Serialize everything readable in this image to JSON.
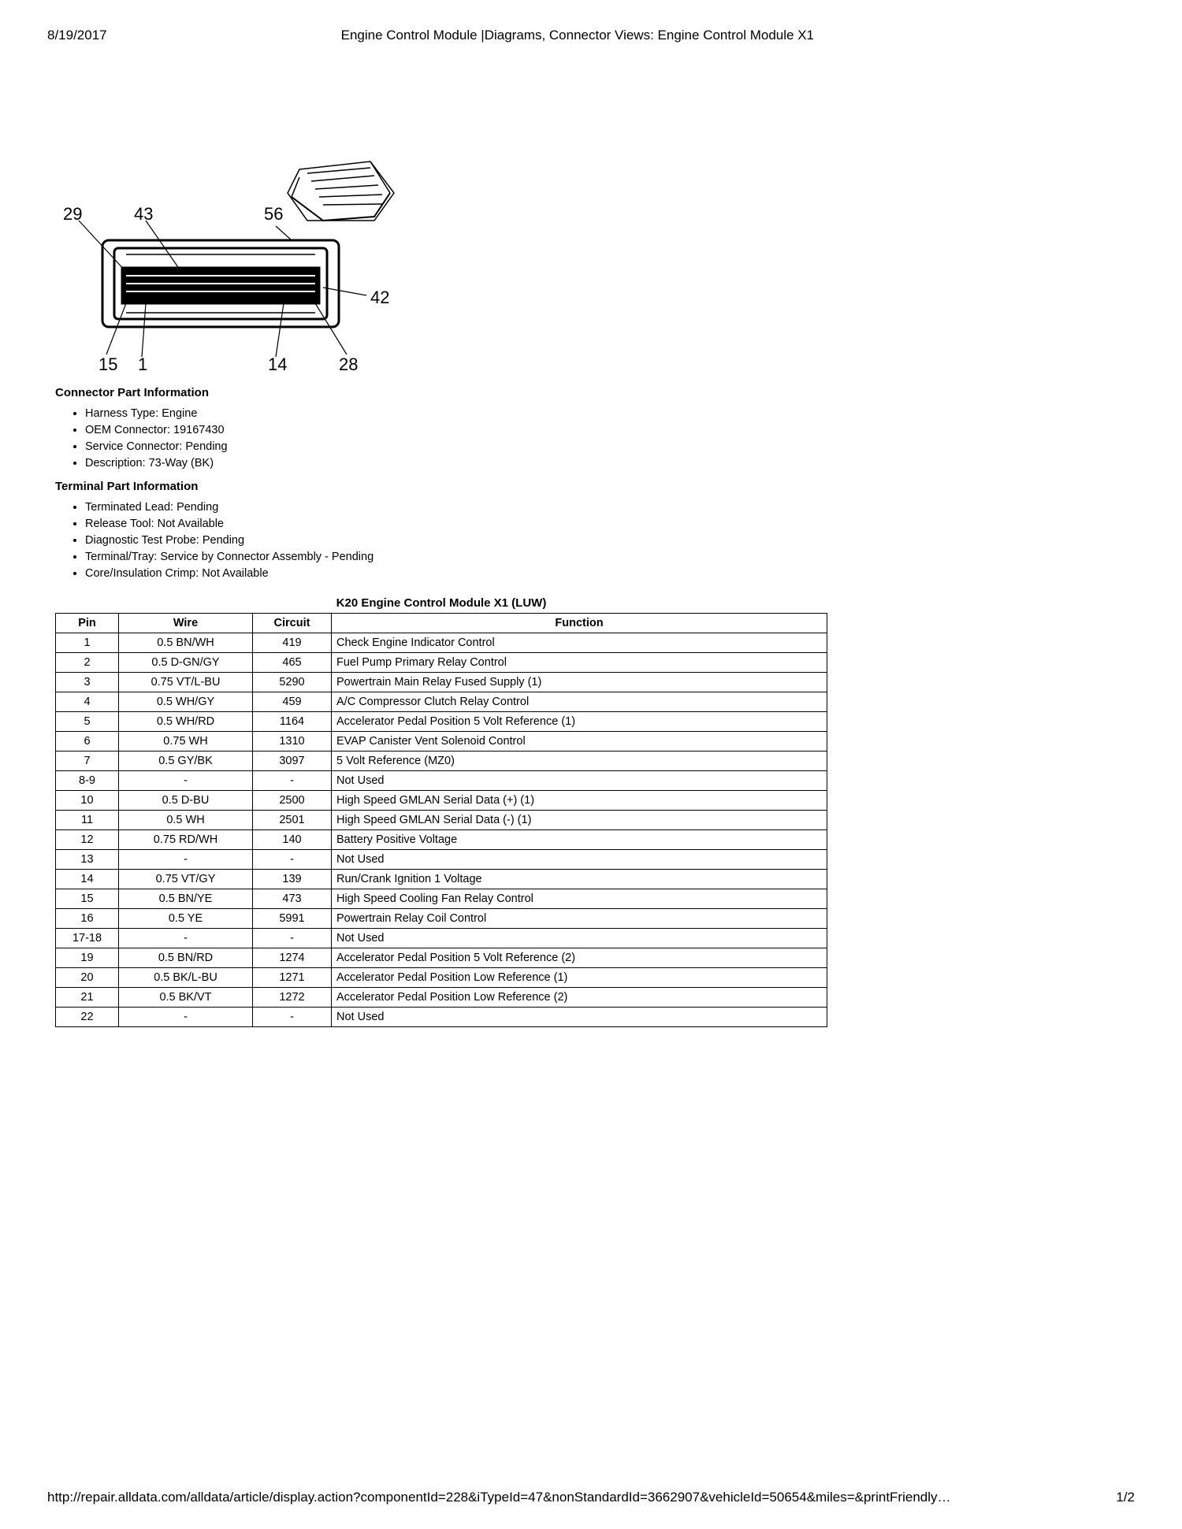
{
  "header": {
    "date": "8/19/2017",
    "title": "Engine Control Module |Diagrams, Connector Views: Engine Control Module X1"
  },
  "diagram": {
    "pin_labels": [
      "29",
      "43",
      "56",
      "42",
      "15",
      "1",
      "14",
      "28"
    ]
  },
  "connector_info": {
    "heading": "Connector Part Information",
    "items": [
      "Harness Type: Engine",
      "OEM Connector: 19167430",
      "Service Connector: Pending",
      "Description: 73-Way (BK)"
    ]
  },
  "terminal_info": {
    "heading": "Terminal Part Information",
    "items": [
      "Terminated Lead: Pending",
      "Release Tool: Not Available",
      "Diagnostic Test Probe: Pending",
      "Terminal/Tray: Service by Connector Assembly - Pending",
      "Core/Insulation Crimp: Not Available"
    ]
  },
  "table": {
    "title": "K20 Engine Control Module X1 (LUW)",
    "columns": [
      "Pin",
      "Wire",
      "Circuit",
      "Function"
    ],
    "rows": [
      {
        "pin": "1",
        "wire": "0.5 BN/WH",
        "circuit": "419",
        "function": "Check Engine Indicator Control"
      },
      {
        "pin": "2",
        "wire": "0.5 D-GN/GY",
        "circuit": "465",
        "function": "Fuel Pump Primary Relay Control"
      },
      {
        "pin": "3",
        "wire": "0.75 VT/L-BU",
        "circuit": "5290",
        "function": "Powertrain Main Relay Fused Supply (1)"
      },
      {
        "pin": "4",
        "wire": "0.5 WH/GY",
        "circuit": "459",
        "function": "A/C Compressor Clutch Relay Control"
      },
      {
        "pin": "5",
        "wire": "0.5 WH/RD",
        "circuit": "1164",
        "function": "Accelerator Pedal Position 5 Volt Reference (1)"
      },
      {
        "pin": "6",
        "wire": "0.75 WH",
        "circuit": "1310",
        "function": "EVAP Canister Vent Solenoid Control"
      },
      {
        "pin": "7",
        "wire": "0.5 GY/BK",
        "circuit": "3097",
        "function": "5 Volt Reference (MZ0)"
      },
      {
        "pin": "8-9",
        "wire": "-",
        "circuit": "-",
        "function": "Not Used"
      },
      {
        "pin": "10",
        "wire": "0.5 D-BU",
        "circuit": "2500",
        "function": "High Speed GMLAN Serial Data (+) (1)"
      },
      {
        "pin": "11",
        "wire": "0.5 WH",
        "circuit": "2501",
        "function": "High Speed GMLAN Serial Data (-) (1)"
      },
      {
        "pin": "12",
        "wire": "0.75 RD/WH",
        "circuit": "140",
        "function": "Battery Positive Voltage"
      },
      {
        "pin": "13",
        "wire": "-",
        "circuit": "-",
        "function": "Not Used"
      },
      {
        "pin": "14",
        "wire": "0.75 VT/GY",
        "circuit": "139",
        "function": "Run/Crank Ignition 1 Voltage"
      },
      {
        "pin": "15",
        "wire": "0.5 BN/YE",
        "circuit": "473",
        "function": "High Speed Cooling Fan Relay Control"
      },
      {
        "pin": "16",
        "wire": "0.5 YE",
        "circuit": "5991",
        "function": "Powertrain Relay Coil Control"
      },
      {
        "pin": "17-18",
        "wire": "-",
        "circuit": "-",
        "function": "Not Used"
      },
      {
        "pin": "19",
        "wire": "0.5 BN/RD",
        "circuit": "1274",
        "function": "Accelerator Pedal Position 5 Volt Reference (2)"
      },
      {
        "pin": "20",
        "wire": "0.5 BK/L-BU",
        "circuit": "1271",
        "function": "Accelerator Pedal Position Low Reference (1)"
      },
      {
        "pin": "21",
        "wire": "0.5 BK/VT",
        "circuit": "1272",
        "function": "Accelerator Pedal Position Low Reference (2)"
      },
      {
        "pin": "22",
        "wire": "-",
        "circuit": "-",
        "function": "Not Used"
      }
    ]
  },
  "footer": {
    "url": "http://repair.alldata.com/alldata/article/display.action?componentId=228&iTypeId=47&nonStandardId=3662907&vehicleId=50654&miles=&printFriendly…",
    "page": "1/2"
  }
}
